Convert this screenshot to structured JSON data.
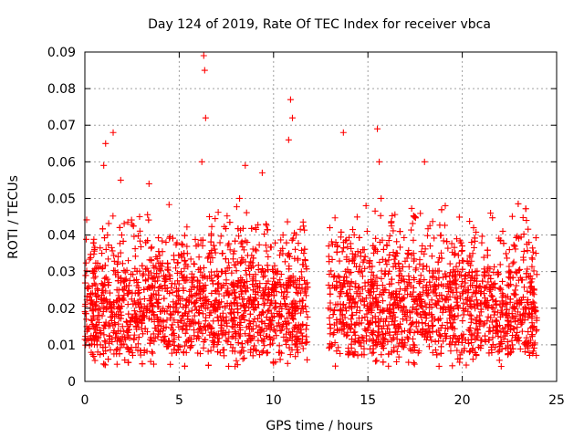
{
  "chart_data": {
    "type": "scatter",
    "title": "Day 124 of 2019, Rate Of TEC Index for receiver vbca",
    "xlabel": "GPS time / hours",
    "ylabel": "ROTI / TECUs",
    "xlim": [
      0,
      25
    ],
    "ylim": [
      0,
      0.09
    ],
    "x_ticks": [
      0,
      5,
      10,
      15,
      20,
      25
    ],
    "y_ticks": [
      0,
      0.01,
      0.02,
      0.03,
      0.04,
      0.05,
      0.06,
      0.07,
      0.08,
      0.09
    ],
    "x_tick_labels": [
      "0",
      "5",
      "10",
      "15",
      "20",
      "25"
    ],
    "y_tick_labels": [
      "0",
      "0.01",
      "0.02",
      "0.03",
      "0.04",
      "0.05",
      "0.06",
      "0.07",
      "0.08",
      "0.09"
    ],
    "grid": true,
    "legend": "none",
    "marker": "plus",
    "color": "#ff0000",
    "data_gap_hours": [
      11.8,
      12.9
    ],
    "series": [
      {
        "x": [
          0.1,
          0.3,
          0.5,
          0.7,
          0.9,
          1.0,
          1.1,
          1.2,
          1.5,
          1.7,
          1.9,
          2.1,
          2.3,
          2.7,
          2.9,
          3.0,
          3.4,
          3.6,
          3.9,
          4.3,
          4.7,
          5.1,
          5.5,
          5.9,
          6.2,
          6.3,
          6.35,
          6.4,
          6.6,
          6.9,
          7.3,
          7.8,
          8.2,
          8.5,
          8.6,
          9.0,
          9.4,
          9.6,
          9.8,
          10.0,
          10.2,
          10.5,
          10.8,
          10.9,
          11.0,
          11.3,
          11.6,
          13.0,
          13.3,
          13.5,
          13.7,
          14.0,
          14.3,
          14.6,
          14.9,
          15.2,
          15.5,
          15.6,
          15.7,
          16.0,
          16.3,
          16.7,
          17.1,
          17.5,
          17.9,
          18.0,
          18.3,
          18.7,
          19.1,
          19.5,
          20.0,
          20.3,
          20.6,
          21.0,
          21.5,
          22.0,
          22.5,
          23.0,
          23.4,
          23.7,
          23.9
        ],
        "y": [
          0.015,
          0.022,
          0.03,
          0.018,
          0.035,
          0.059,
          0.065,
          0.04,
          0.068,
          0.025,
          0.055,
          0.012,
          0.033,
          0.021,
          0.045,
          0.016,
          0.054,
          0.026,
          0.014,
          0.038,
          0.019,
          0.03,
          0.022,
          0.037,
          0.06,
          0.089,
          0.085,
          0.072,
          0.045,
          0.02,
          0.035,
          0.015,
          0.05,
          0.059,
          0.038,
          0.022,
          0.057,
          0.043,
          0.012,
          0.005,
          0.03,
          0.04,
          0.066,
          0.077,
          0.072,
          0.02,
          0.035,
          0.013,
          0.038,
          0.027,
          0.068,
          0.015,
          0.034,
          0.024,
          0.048,
          0.021,
          0.069,
          0.06,
          0.05,
          0.032,
          0.018,
          0.041,
          0.026,
          0.045,
          0.014,
          0.06,
          0.037,
          0.022,
          0.048,
          0.016,
          0.033,
          0.025,
          0.042,
          0.019,
          0.046,
          0.021,
          0.036,
          0.012,
          0.044,
          0.028,
          0.035
        ]
      }
    ]
  }
}
